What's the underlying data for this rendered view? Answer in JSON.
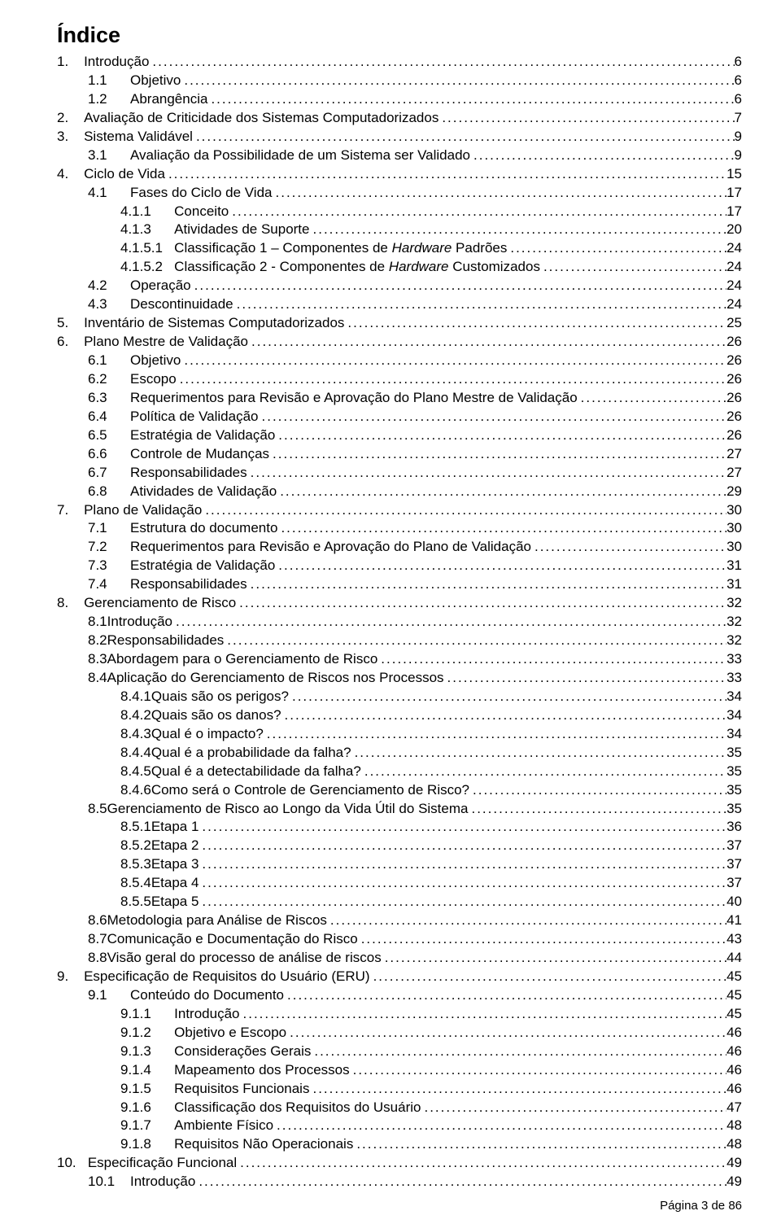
{
  "title": "Índice",
  "footer": "Página 3 de 86",
  "leader_dots": "................................................................................................................................................................................................................................",
  "toc": [
    {
      "indent": 0,
      "num": "1.",
      "spaces": "    ",
      "label": "Introdução",
      "page": "6"
    },
    {
      "indent": 1,
      "num": "1.1",
      "spaces": "      ",
      "label": "Objetivo",
      "page": "6"
    },
    {
      "indent": 1,
      "num": "1.2",
      "spaces": "      ",
      "label": "Abrangência",
      "page": "6"
    },
    {
      "indent": 0,
      "num": "2.",
      "spaces": "    ",
      "label": "Avaliação de Criticidade dos Sistemas Computadorizados",
      "page": "7"
    },
    {
      "indent": 0,
      "num": "3.",
      "spaces": "    ",
      "label": "Sistema Validável",
      "page": "9"
    },
    {
      "indent": 1,
      "num": "3.1",
      "spaces": "      ",
      "label": "Avaliação da Possibilidade de um Sistema ser Validado",
      "page": "9"
    },
    {
      "indent": 0,
      "num": "4.",
      "spaces": "    ",
      "label": "Ciclo de Vida",
      "page": "15"
    },
    {
      "indent": 1,
      "num": "4.1",
      "spaces": "      ",
      "label": "Fases do Ciclo de Vida",
      "page": "17"
    },
    {
      "indent": 2,
      "num": "4.1.1",
      "spaces": "      ",
      "label": "Conceito",
      "page": "17"
    },
    {
      "indent": 2,
      "num": "4.1.3",
      "spaces": "      ",
      "label": "Atividades de Suporte",
      "page": "20"
    },
    {
      "indent": 2,
      "num": "4.1.5.1",
      "spaces": "   ",
      "label": "Classificação 1 – Componentes de ",
      "label2_italic": "Hardware",
      "label3": " Padrões",
      "page": "24"
    },
    {
      "indent": 2,
      "num": "4.1.5.2",
      "spaces": "   ",
      "label": "Classificação 2 - Componentes de ",
      "label2_italic": "Hardware",
      "label3": " Customizados",
      "page": "24"
    },
    {
      "indent": 1,
      "num": "4.2",
      "spaces": "      ",
      "label": "Operação",
      "page": "24"
    },
    {
      "indent": 1,
      "num": "4.3",
      "spaces": "      ",
      "label": "Descontinuidade",
      "page": "24"
    },
    {
      "indent": 0,
      "num": "5.",
      "spaces": "    ",
      "label": "Inventário de Sistemas Computadorizados",
      "page": "25"
    },
    {
      "indent": 0,
      "num": "6.",
      "spaces": "    ",
      "label": "Plano Mestre de Validação",
      "page": "26"
    },
    {
      "indent": 1,
      "num": "6.1",
      "spaces": "      ",
      "label": "Objetivo",
      "page": "26"
    },
    {
      "indent": 1,
      "num": "6.2",
      "spaces": "      ",
      "label": "Escopo",
      "page": "26"
    },
    {
      "indent": 1,
      "num": "6.3",
      "spaces": "      ",
      "label": "Requerimentos para Revisão e Aprovação do Plano Mestre de Validação",
      "page": "26"
    },
    {
      "indent": 1,
      "num": "6.4",
      "spaces": "      ",
      "label": "Política de Validação",
      "page": "26"
    },
    {
      "indent": 1,
      "num": "6.5",
      "spaces": "      ",
      "label": "Estratégia de Validação",
      "page": "26"
    },
    {
      "indent": 1,
      "num": "6.6",
      "spaces": "      ",
      "label": "Controle de Mudanças",
      "page": "27"
    },
    {
      "indent": 1,
      "num": "6.7",
      "spaces": "      ",
      "label": "Responsabilidades",
      "page": "27"
    },
    {
      "indent": 1,
      "num": "6.8",
      "spaces": "      ",
      "label": "Atividades de Validação",
      "page": "29"
    },
    {
      "indent": 0,
      "num": "7.",
      "spaces": "    ",
      "label": "Plano de Validação",
      "page": "30"
    },
    {
      "indent": 1,
      "num": "7.1",
      "spaces": "      ",
      "label": "Estrutura do documento",
      "page": "30"
    },
    {
      "indent": 1,
      "num": "7.2",
      "spaces": "      ",
      "label": "Requerimentos para Revisão e Aprovação do Plano de Validação",
      "page": "30"
    },
    {
      "indent": 1,
      "num": "7.3",
      "spaces": "      ",
      "label": "Estratégia de Validação",
      "page": "31"
    },
    {
      "indent": 1,
      "num": "7.4",
      "spaces": "      ",
      "label": "Responsabilidades",
      "page": "31"
    },
    {
      "indent": 0,
      "num": "8.",
      "spaces": "    ",
      "label": "Gerenciamento de Risco",
      "page": "32"
    },
    {
      "indent": 1,
      "num": "8.1 ",
      "spaces": "",
      "label": "Introdução",
      "page": "32"
    },
    {
      "indent": 1,
      "num": "8.2 ",
      "spaces": "",
      "label": "Responsabilidades",
      "page": "32"
    },
    {
      "indent": 1,
      "num": "8.3 ",
      "spaces": "",
      "label": "Abordagem para o Gerenciamento de Risco",
      "page": "33"
    },
    {
      "indent": 1,
      "num": "8.4 ",
      "spaces": "",
      "label": "Aplicação do Gerenciamento de Riscos nos Processos",
      "page": "33"
    },
    {
      "indent": 2,
      "num": "8.4.1",
      "spaces": "",
      "label": "Quais são os perigos?",
      "page": "34"
    },
    {
      "indent": 2,
      "num": "8.4.2 ",
      "spaces": "",
      "label": "Quais são os danos?",
      "page": "34"
    },
    {
      "indent": 2,
      "num": "8.4.3 ",
      "spaces": "",
      "label": "Qual é o impacto?",
      "page": "34"
    },
    {
      "indent": 2,
      "num": "8.4.4 ",
      "spaces": "",
      "label": "Qual é a probabilidade da falha?",
      "page": "35"
    },
    {
      "indent": 2,
      "num": "8.4.5 ",
      "spaces": "",
      "label": "Qual é a detectabilidade da falha?",
      "page": "35"
    },
    {
      "indent": 2,
      "num": "8.4.6 ",
      "spaces": "",
      "label": "Como será o Controle de Gerenciamento de Risco?",
      "page": "35"
    },
    {
      "indent": 1,
      "num": "8.5  ",
      "spaces": "",
      "label": "Gerenciamento de Risco ao Longo da Vida Útil do Sistema",
      "page": "35"
    },
    {
      "indent": 2,
      "num": "8.5.1",
      "spaces": "",
      "label": "Etapa 1",
      "page": "36"
    },
    {
      "indent": 2,
      "num": "8.5.2 ",
      "spaces": "",
      "label": "Etapa 2",
      "page": "37"
    },
    {
      "indent": 2,
      "num": "8.5.3 ",
      "spaces": "",
      "label": "Etapa 3",
      "page": "37"
    },
    {
      "indent": 2,
      "num": "8.5.4 ",
      "spaces": "",
      "label": "Etapa 4",
      "page": "37"
    },
    {
      "indent": 2,
      "num": "8.5.5 ",
      "spaces": "",
      "label": "Etapa 5",
      "page": "40"
    },
    {
      "indent": 1,
      "num": "8.6 ",
      "spaces": "",
      "label": "Metodologia para Análise de Riscos",
      "page": "41"
    },
    {
      "indent": 1,
      "num": "8.7 ",
      "spaces": "",
      "label": "Comunicação e Documentação do Risco",
      "page": "43"
    },
    {
      "indent": 1,
      "num": "8.8 ",
      "spaces": "",
      "label": "Visão geral do processo de análise de riscos",
      "page": "44"
    },
    {
      "indent": 0,
      "num": "9.",
      "spaces": "    ",
      "label": "Especificação de Requisitos do Usuário (ERU)",
      "page": "45"
    },
    {
      "indent": 1,
      "num": "9.1",
      "spaces": "      ",
      "label": "Conteúdo do Documento",
      "page": "45"
    },
    {
      "indent": 2,
      "num": "9.1.1",
      "spaces": "      ",
      "label": "Introdução",
      "page": "45"
    },
    {
      "indent": 2,
      "num": "9.1.2",
      "spaces": "      ",
      "label": "Objetivo e Escopo",
      "page": "46"
    },
    {
      "indent": 2,
      "num": "9.1.3",
      "spaces": "      ",
      "label": "Considerações Gerais",
      "page": "46"
    },
    {
      "indent": 2,
      "num": "9.1.4",
      "spaces": "      ",
      "label": "Mapeamento dos Processos",
      "page": "46"
    },
    {
      "indent": 2,
      "num": "9.1.5",
      "spaces": "      ",
      "label": "Requisitos Funcionais",
      "page": "46"
    },
    {
      "indent": 2,
      "num": "9.1.6",
      "spaces": "      ",
      "label": "Classificação dos Requisitos do Usuário",
      "page": "47"
    },
    {
      "indent": 2,
      "num": "9.1.7",
      "spaces": "      ",
      "label": "Ambiente Físico",
      "page": "48"
    },
    {
      "indent": 2,
      "num": "9.1.8",
      "spaces": "      ",
      "label": "Requisitos Não Operacionais",
      "page": "48"
    },
    {
      "indent": 0,
      "num": "10.",
      "spaces": "   ",
      "label": "Especificação Funcional",
      "page": "49"
    },
    {
      "indent": 1,
      "num": "10.1",
      "spaces": "    ",
      "label": "Introdução",
      "page": "49"
    }
  ]
}
